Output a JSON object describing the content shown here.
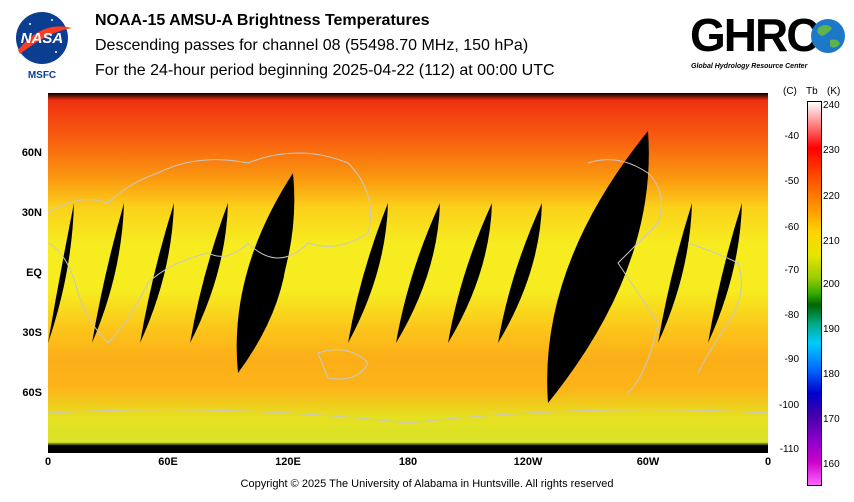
{
  "header": {
    "title": "NOAA-15 AMSU-A Brightness Temperatures",
    "subtitle": "Descending passes for channel 08 (55498.70 MHz, 150 hPa)",
    "period": "For the 24-hour period beginning 2025-04-22 (112) at 00:00 UTC"
  },
  "logos": {
    "nasa": "NASA",
    "nasa_sub": "MSFC",
    "ghrc": "GHRC",
    "ghrc_sub": "Global Hydrology Resource Center"
  },
  "map": {
    "lat_labels": [
      "60N",
      "30N",
      "EQ",
      "30S",
      "60S"
    ],
    "lon_labels": [
      "0",
      "60E",
      "120E",
      "180",
      "120W",
      "60W",
      "0"
    ]
  },
  "colorbar": {
    "unit_c": "(C)",
    "unit_tb": "Tb",
    "unit_k": "(K)",
    "kelvin_ticks": [
      "240",
      "230",
      "220",
      "210",
      "200",
      "190",
      "180",
      "170",
      "160"
    ],
    "celsius_ticks": [
      "-40",
      "-50",
      "-60",
      "-70",
      "-80",
      "-90",
      "-100",
      "-110"
    ]
  },
  "footer": {
    "copyright": "Copyright © 2025 The University of Alabama in Huntsville.  All rights reserved"
  }
}
